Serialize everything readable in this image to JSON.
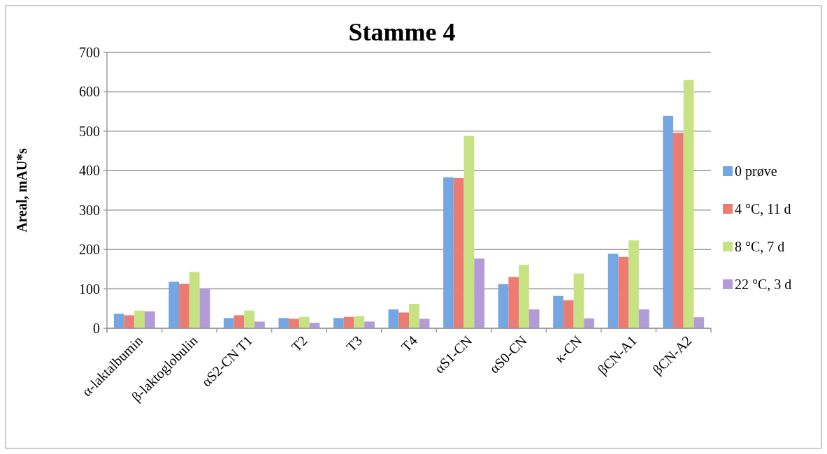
{
  "chart_data": {
    "type": "bar",
    "title": "Stamme 4",
    "ylabel": "Areal, mAU*s",
    "categories": [
      "α-laktalbumin",
      "β-laktoglobulin",
      "αS2-CN T1",
      "T2",
      "T3",
      "T4",
      "αS1-CN",
      "αS0-CN",
      "κ-CN",
      "βCN-A1",
      "βCN-A2"
    ],
    "series": [
      {
        "name": "0 prøve",
        "color": "#74a6e4",
        "values": [
          37,
          118,
          26,
          26,
          26,
          48,
          383,
          112,
          82,
          189,
          539
        ]
      },
      {
        "name": "4 °C, 11 d",
        "color": "#ec7b73",
        "values": [
          33,
          113,
          33,
          24,
          29,
          40,
          381,
          130,
          71,
          181,
          496
        ]
      },
      {
        "name": "8 °C, 7 d",
        "color": "#c6e282",
        "values": [
          45,
          143,
          45,
          29,
          31,
          62,
          488,
          161,
          139,
          223,
          630
        ]
      },
      {
        "name": "22 °C, 3 d",
        "color": "#b29bd6",
        "values": [
          43,
          100,
          17,
          14,
          17,
          24,
          177,
          48,
          25,
          48,
          28
        ]
      }
    ],
    "ylim": [
      0,
      700
    ],
    "yticks": [
      0,
      100,
      200,
      300,
      400,
      500,
      600,
      700
    ],
    "grid": "y",
    "legend": "right"
  }
}
